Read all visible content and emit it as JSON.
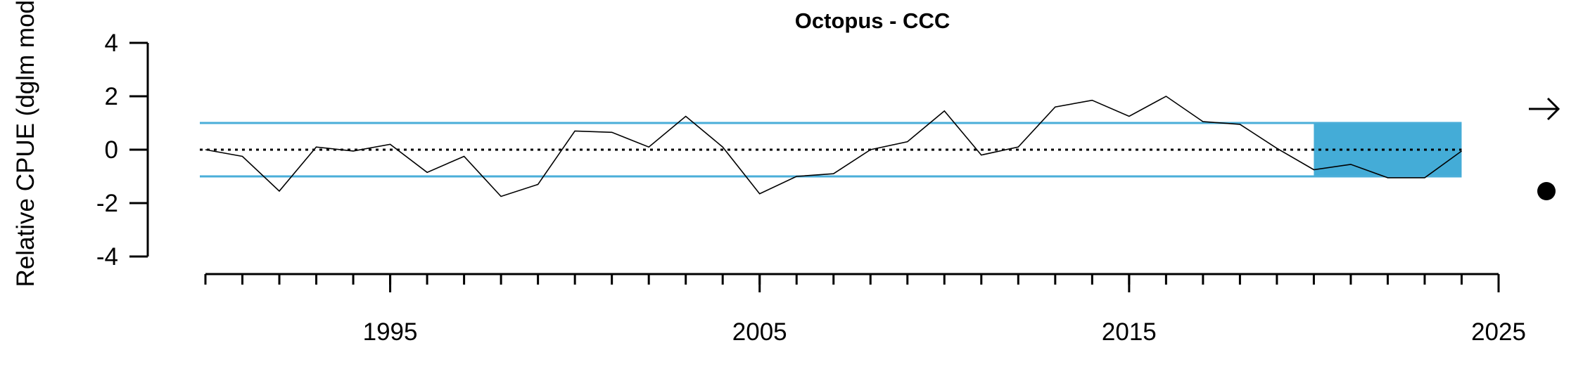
{
  "chart_data": {
    "type": "line",
    "title": "Octopus - CCC",
    "ylabel": "Relative CPUE (dglm mod",
    "xlabel": "",
    "xlim": [
      1990,
      2025
    ],
    "ylim": [
      -4,
      4
    ],
    "x_ticks_major": [
      1995,
      2005,
      2015,
      2025
    ],
    "x_ticks_minor": [
      1990,
      1991,
      1992,
      1993,
      1994,
      1995,
      1996,
      1997,
      1998,
      1999,
      2000,
      2001,
      2002,
      2003,
      2004,
      2005,
      2006,
      2007,
      2008,
      2009,
      2010,
      2011,
      2012,
      2013,
      2014,
      2015,
      2016,
      2017,
      2018,
      2019,
      2020,
      2021,
      2022,
      2023,
      2024,
      2025
    ],
    "y_ticks": [
      4,
      2,
      0,
      -2,
      -4
    ],
    "grid": false,
    "series": [
      {
        "x": [
          1990,
          1991,
          1992,
          1993,
          1994,
          1995,
          1996,
          1997,
          1998,
          1999,
          2000,
          2001,
          2002,
          2003,
          2004,
          2005,
          2006,
          2007,
          2008,
          2009,
          2010,
          2011,
          2012,
          2013,
          2014,
          2015,
          2016,
          2017,
          2018,
          2019,
          2020,
          2021,
          2022,
          2023,
          2024
        ],
        "values": [
          0.0,
          -0.25,
          -1.55,
          0.1,
          -0.05,
          0.2,
          -0.85,
          -0.25,
          -1.75,
          -1.3,
          0.7,
          0.65,
          0.1,
          1.25,
          0.1,
          -1.65,
          -1.0,
          -0.9,
          0.0,
          0.3,
          1.45,
          -0.2,
          0.1,
          1.6,
          1.85,
          1.25,
          2.0,
          1.05,
          0.95,
          0.05,
          -0.75,
          -0.55,
          -1.05,
          -1.05,
          -0.05
        ]
      }
    ],
    "reference_lines": {
      "mean": 0,
      "upper": 1,
      "lower": -1,
      "mean_style": "dotted",
      "band_color": "#4aaed9"
    },
    "highlight_box": {
      "x": [
        2020,
        2024
      ],
      "y": [
        -1,
        1
      ],
      "color": "#44acd7"
    },
    "right_symbols": {
      "trend": "arrow-right-icon",
      "status": "filled-circle-icon"
    }
  }
}
